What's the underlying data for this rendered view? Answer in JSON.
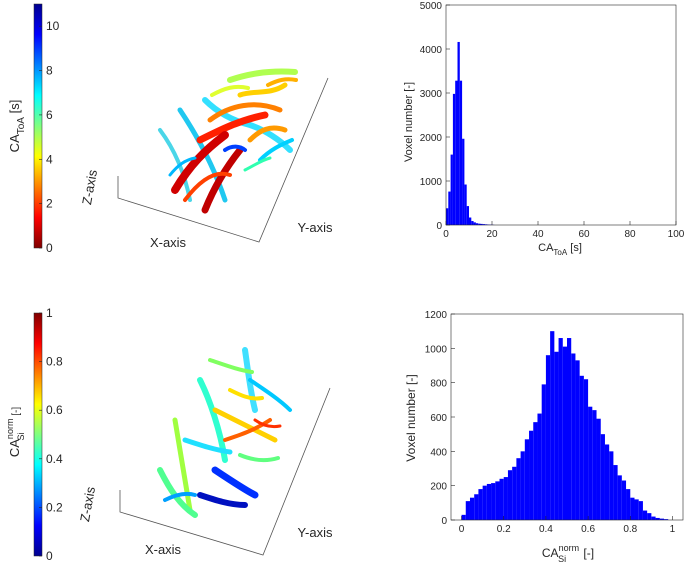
{
  "panels": {
    "top_3d": {
      "colorbar": {
        "label_main": "CA",
        "label_sub": "ToA",
        "label_unit": " [s]",
        "ticks": [
          0,
          2,
          4,
          6,
          8,
          10
        ],
        "range": [
          0,
          11
        ],
        "colormap": "jet-reversed"
      },
      "axes": {
        "z": "Z-axis",
        "x": "X-axis",
        "y": "Y-axis"
      }
    },
    "bottom_3d": {
      "colorbar": {
        "label_main": "CA",
        "label_sup": "norm",
        "label_sub": "Si",
        "label_unit": " [-]",
        "ticks": [
          0,
          0.2,
          0.4,
          0.6,
          0.8,
          1
        ],
        "tick_labels": [
          "0",
          "0.2",
          "0.4",
          "0.6",
          "0.8",
          "1"
        ],
        "range": [
          0,
          1
        ],
        "colormap": "jet"
      },
      "axes": {
        "z": "Z-axis",
        "x": "X-axis",
        "y": "Y-axis"
      }
    }
  },
  "chart_data": [
    {
      "type": "bar",
      "id": "hist_toa",
      "ylabel": "Voxel number [-]",
      "xlabel_main": "CA",
      "xlabel_sub": "ToA",
      "xlabel_unit": " [s]",
      "xlim": [
        0,
        100
      ],
      "ylim": [
        0,
        5000
      ],
      "xticks": [
        0,
        20,
        40,
        60,
        80,
        100
      ],
      "yticks": [
        0,
        1000,
        2000,
        3000,
        4000,
        5000
      ],
      "bin_width": 1,
      "x": [
        0,
        1,
        2,
        3,
        4,
        5,
        6,
        7,
        8,
        9,
        10,
        11,
        12,
        13,
        14,
        15,
        16,
        17,
        18,
        19,
        20
      ],
      "values": [
        380,
        760,
        1600,
        2980,
        3280,
        4160,
        3280,
        1960,
        920,
        430,
        170,
        90,
        60,
        40,
        30,
        25,
        20,
        15,
        10,
        8,
        5
      ],
      "color": "#0000ff"
    },
    {
      "type": "bar",
      "id": "hist_si",
      "ylabel": "Voxel number [-]",
      "xlabel_main": "CA",
      "xlabel_sup": "norm",
      "xlabel_sub": "Si",
      "xlabel_unit": " [-]",
      "xlim": [
        -0.05,
        1.05
      ],
      "ylim": [
        0,
        1200
      ],
      "xticks": [
        0,
        0.2,
        0.4,
        0.6,
        0.8,
        1
      ],
      "xtick_labels": [
        "0",
        "0.2",
        "0.4",
        "0.6",
        "0.8",
        "1"
      ],
      "yticks": [
        0,
        200,
        400,
        600,
        800,
        1000,
        1200
      ],
      "bin_width": 0.02,
      "x": [
        0.0,
        0.02,
        0.04,
        0.06,
        0.08,
        0.1,
        0.12,
        0.14,
        0.16,
        0.18,
        0.2,
        0.22,
        0.24,
        0.26,
        0.28,
        0.3,
        0.32,
        0.34,
        0.36,
        0.38,
        0.4,
        0.42,
        0.44,
        0.46,
        0.48,
        0.5,
        0.52,
        0.54,
        0.56,
        0.58,
        0.6,
        0.62,
        0.64,
        0.66,
        0.68,
        0.7,
        0.72,
        0.74,
        0.76,
        0.78,
        0.8,
        0.82,
        0.84,
        0.86,
        0.88,
        0.9,
        0.92,
        0.94,
        0.96
      ],
      "values": [
        30,
        110,
        130,
        150,
        180,
        200,
        210,
        215,
        225,
        240,
        250,
        290,
        310,
        360,
        400,
        470,
        520,
        570,
        620,
        790,
        960,
        1100,
        980,
        1060,
        1010,
        1060,
        970,
        930,
        840,
        820,
        660,
        640,
        590,
        500,
        440,
        400,
        320,
        260,
        230,
        180,
        130,
        120,
        110,
        55,
        40,
        20,
        12,
        8,
        5
      ],
      "color": "#0000ff"
    }
  ]
}
